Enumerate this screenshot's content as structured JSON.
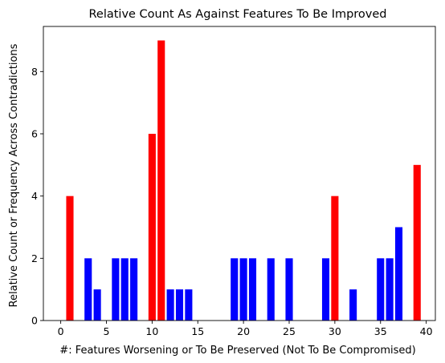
{
  "chart_data": {
    "type": "bar",
    "title": "Relative Count As Against Features To Be Improved",
    "xlabel": "#: Features Worsening or To Be Preserved (Not To Be Compromised)",
    "ylabel": "Relative Count or Frequency Across Contradictions",
    "xlim": [
      -1.9,
      41.0
    ],
    "ylim": [
      0,
      9.45
    ],
    "xticks": [
      0,
      5,
      10,
      15,
      20,
      25,
      30,
      35,
      40
    ],
    "yticks": [
      0,
      2,
      4,
      6,
      8
    ],
    "grid": false,
    "bars": [
      {
        "x": 1,
        "value": 4,
        "color": "#ff0000"
      },
      {
        "x": 3,
        "value": 2,
        "color": "#0000ff"
      },
      {
        "x": 4,
        "value": 1,
        "color": "#0000ff"
      },
      {
        "x": 6,
        "value": 2,
        "color": "#0000ff"
      },
      {
        "x": 7,
        "value": 2,
        "color": "#0000ff"
      },
      {
        "x": 8,
        "value": 2,
        "color": "#0000ff"
      },
      {
        "x": 10,
        "value": 6,
        "color": "#ff0000"
      },
      {
        "x": 11,
        "value": 9,
        "color": "#ff0000"
      },
      {
        "x": 12,
        "value": 1,
        "color": "#0000ff"
      },
      {
        "x": 13,
        "value": 1,
        "color": "#0000ff"
      },
      {
        "x": 14,
        "value": 1,
        "color": "#0000ff"
      },
      {
        "x": 19,
        "value": 2,
        "color": "#0000ff"
      },
      {
        "x": 20,
        "value": 2,
        "color": "#0000ff"
      },
      {
        "x": 21,
        "value": 2,
        "color": "#0000ff"
      },
      {
        "x": 23,
        "value": 2,
        "color": "#0000ff"
      },
      {
        "x": 25,
        "value": 2,
        "color": "#0000ff"
      },
      {
        "x": 29,
        "value": 2,
        "color": "#0000ff"
      },
      {
        "x": 30,
        "value": 4,
        "color": "#ff0000"
      },
      {
        "x": 32,
        "value": 1,
        "color": "#0000ff"
      },
      {
        "x": 35,
        "value": 2,
        "color": "#0000ff"
      },
      {
        "x": 36,
        "value": 2,
        "color": "#0000ff"
      },
      {
        "x": 37,
        "value": 3,
        "color": "#0000ff"
      },
      {
        "x": 39,
        "value": 5,
        "color": "#ff0000"
      }
    ]
  }
}
